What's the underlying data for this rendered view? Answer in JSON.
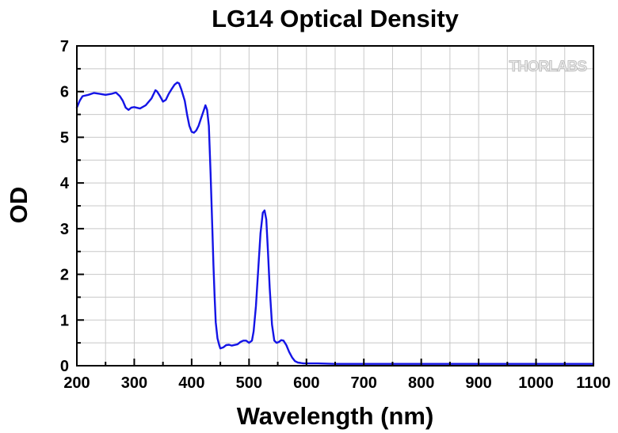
{
  "chart_data": {
    "type": "line",
    "title": "LG14 Optical Density",
    "xlabel": "Wavelength (nm)",
    "ylabel": "OD",
    "xlim": [
      200,
      1100
    ],
    "ylim": [
      0,
      7
    ],
    "xticks": [
      200,
      300,
      400,
      500,
      600,
      700,
      800,
      900,
      1000,
      1100
    ],
    "yticks": [
      0,
      1,
      2,
      3,
      4,
      5,
      6,
      7
    ],
    "grid": true,
    "legend": "none",
    "watermark": "THORLABS",
    "series": [
      {
        "color": "#1414e6",
        "x": [
          200,
          205,
          210,
          220,
          230,
          240,
          250,
          260,
          268,
          275,
          280,
          285,
          290,
          295,
          300,
          310,
          320,
          330,
          337,
          340,
          345,
          350,
          355,
          360,
          365,
          370,
          375,
          378,
          382,
          388,
          392,
          396,
          400,
          404,
          408,
          412,
          416,
          420,
          424,
          427,
          430,
          433,
          436,
          438,
          440,
          442,
          445,
          448,
          450,
          455,
          460,
          465,
          470,
          480,
          485,
          490,
          495,
          500,
          505,
          508,
          512,
          516,
          520,
          524,
          527,
          530,
          533,
          536,
          540,
          544,
          548,
          552,
          556,
          560,
          565,
          570,
          575,
          580,
          585,
          590,
          595,
          600,
          620,
          650,
          700,
          800,
          900,
          1000,
          1100
        ],
        "y": [
          5.65,
          5.8,
          5.9,
          5.93,
          5.97,
          5.95,
          5.93,
          5.95,
          5.98,
          5.9,
          5.8,
          5.65,
          5.6,
          5.65,
          5.66,
          5.63,
          5.7,
          5.85,
          6.03,
          6.0,
          5.9,
          5.78,
          5.82,
          5.95,
          6.05,
          6.15,
          6.2,
          6.18,
          6.05,
          5.8,
          5.5,
          5.25,
          5.12,
          5.1,
          5.15,
          5.25,
          5.4,
          5.55,
          5.7,
          5.6,
          5.25,
          4.2,
          3.0,
          2.2,
          1.5,
          0.95,
          0.6,
          0.45,
          0.38,
          0.4,
          0.45,
          0.46,
          0.44,
          0.47,
          0.52,
          0.55,
          0.55,
          0.5,
          0.55,
          0.75,
          1.3,
          2.1,
          2.9,
          3.35,
          3.4,
          3.2,
          2.5,
          1.7,
          0.9,
          0.55,
          0.5,
          0.52,
          0.56,
          0.55,
          0.45,
          0.3,
          0.18,
          0.1,
          0.07,
          0.06,
          0.05,
          0.05,
          0.05,
          0.04,
          0.04,
          0.04,
          0.04,
          0.04,
          0.04
        ]
      }
    ]
  }
}
